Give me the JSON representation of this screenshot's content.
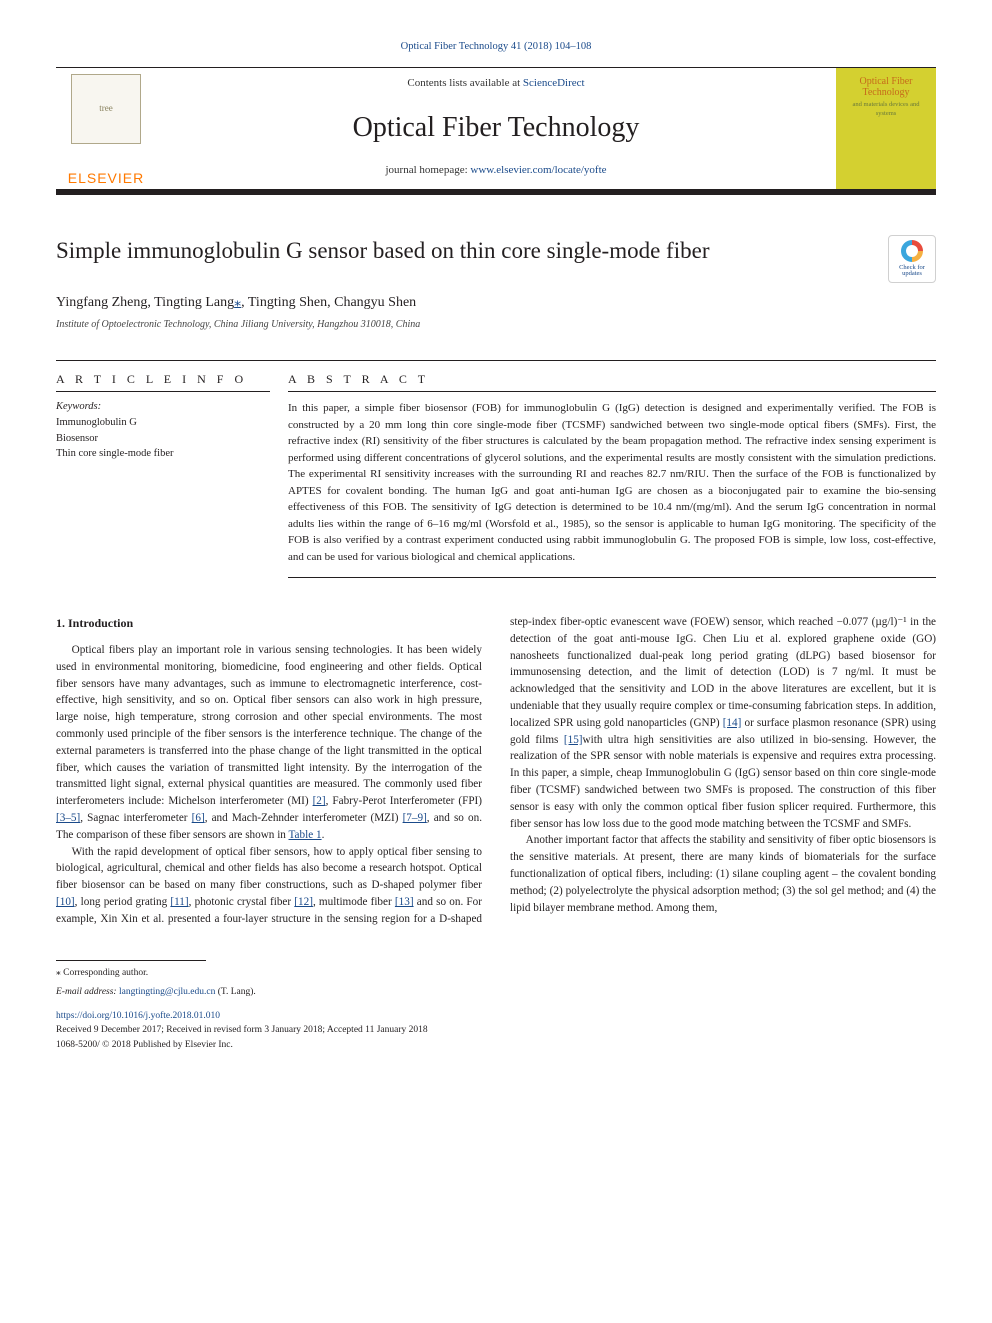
{
  "header": {
    "top_link": "Optical Fiber Technology 41 (2018) 104–108",
    "contents_prefix": "Contents lists available at ",
    "contents_link": "ScienceDirect",
    "journal_name": "Optical Fiber Technology",
    "homepage_prefix": "journal homepage: ",
    "homepage_url": "www.elsevier.com/locate/yofte",
    "publisher_name": "ELSEVIER",
    "tree_alt": "tree",
    "cover_title": "Optical Fiber Technology",
    "cover_sub": "and materials devices and systems"
  },
  "crossmark": {
    "line1": "Check for",
    "line2": "updates"
  },
  "article": {
    "title": "Simple immunoglobulin G sensor based on thin core single-mode fiber",
    "authors_html": "Yingfang Zheng, Tingting Lang",
    "corr_marker": "⁎",
    "authors_tail": ", Tingting Shen, Changyu Shen",
    "affiliation": "Institute of Optoelectronic Technology, China Jiliang University, Hangzhou 310018, China"
  },
  "info": {
    "heading": "A R T I C L E   I N F O",
    "kw_label": "Keywords:",
    "keywords": [
      "Immunoglobulin G",
      "Biosensor",
      "Thin core single-mode fiber"
    ]
  },
  "abstract": {
    "heading": "A B S T R A C T",
    "text": "In this paper, a simple fiber biosensor (FOB) for immunoglobulin G (IgG) detection is designed and experimentally verified. The FOB is constructed by a 20 mm long thin core single-mode fiber (TCSMF) sandwiched between two single-mode optical fibers (SMFs). First, the refractive index (RI) sensitivity of the fiber structures is calculated by the beam propagation method. The refractive index sensing experiment is performed using different concentrations of glycerol solutions, and the experimental results are mostly consistent with the simulation predictions. The experimental RI sensitivity increases with the surrounding RI and reaches 82.7 nm/RIU. Then the surface of the FOB is functionalized by APTES for covalent bonding. The human IgG and goat anti-human IgG are chosen as a bioconjugated pair to examine the bio-sensing effectiveness of this FOB. The sensitivity of IgG detection is determined to be 10.4 nm/(mg/ml). And the serum IgG concentration in normal adults lies within the range of 6–16 mg/ml (Worsfold et al., 1985), so the sensor is applicable to human IgG monitoring. The specificity of the FOB is also verified by a contrast experiment conducted using rabbit immunoglobulin G. The proposed FOB is simple, low loss, cost-effective, and can be used for various biological and chemical applications."
  },
  "body": {
    "section_number": "1.",
    "section_title": "Introduction",
    "p1a": "Optical fibers play an important role in various sensing technologies. It has been widely used in environmental monitoring, biomedicine, food engineering and other fields. Optical fiber sensors have many advantages, such as immune to electromagnetic interference, cost-effective, high sensitivity, and so on. Optical fiber sensors can also work in high pressure, large noise, high temperature, strong corrosion and other special environments. The most commonly used principle of the fiber sensors is the interference technique. The change of the external parameters is transferred into the phase change of the light transmitted in the optical fiber, which causes the variation of transmitted light intensity. By the interrogation of the transmitted light signal, external physical quantities are measured. The commonly used fiber interferometers include: Michelson interferometer (MI) ",
    "r2": "[2]",
    "p1b": ", Fabry-Perot Interferometer (FPI) ",
    "r35": "[3–5]",
    "p1c": ", Sagnac interferometer ",
    "r6": "[6]",
    "p1d": ", and Mach-Zehnder interferometer (MZI) ",
    "r79": "[7–9]",
    "p1e": ", and so on. The comparison of these fiber sensors are shown in ",
    "t1": "Table 1",
    "p1f": ".",
    "p2a": "With the rapid development of optical fiber sensors, how to apply optical fiber sensing to biological, agricultural, chemical and other fields has also become a research hotspot. Optical fiber biosensor can be based on many fiber constructions, such as D-shaped polymer fiber ",
    "r10": "[10]",
    "p2b": ", long period grating ",
    "r11": "[11]",
    "p2c": ", photonic crystal fiber ",
    "r12": "[12]",
    "p2d": ", multimode fiber ",
    "r13": "[13]",
    "p2e": " and so on. For example, Xin Xin et al. presented a four-layer structure in the sensing region for a D-shaped step-index fiber-optic evanescent wave (FOEW) sensor, which reached −0.077 (µg/l)⁻¹ in the detection of the goat anti-mouse IgG. Chen Liu et al. explored graphene oxide (GO) nanosheets functionalized dual-peak long period grating (dLPG) based biosensor for immunosensing detection, and the limit of detection (LOD) is 7 ng/ml. It must be acknowledged that the sensitivity and LOD in the above literatures are excellent, but it is undeniable that they usually require complex or time-consuming fabrication steps. In addition, localized SPR using gold nanoparticles (GNP) ",
    "r14": "[14]",
    "p2f": " or surface plasmon resonance (SPR) using gold films ",
    "r15": "[15]",
    "p2g": "with ultra high sensitivities are also utilized in bio-sensing. However, the realization of the SPR sensor with noble materials is expensive and requires extra processing. In this paper, a simple, cheap Immunoglobulin G (IgG) sensor based on thin core single-mode fiber (TCSMF) sandwiched between two SMFs is proposed. The construction of this fiber sensor is easy with only the common optical fiber fusion splicer required. Furthermore, this fiber sensor has low loss due to the good mode matching between the TCSMF and SMFs.",
    "p3": "Another important factor that affects the stability and sensitivity of fiber optic biosensors is the sensitive materials. At present, there are many kinds of biomaterials for the surface functionalization of optical fibers, including: (1) silane coupling agent – the covalent bonding method; (2) polyelectrolyte the physical adsorption method; (3) the sol gel method; and (4) the lipid bilayer membrane method. Among them,"
  },
  "footer": {
    "corr_note": "⁎ Corresponding author.",
    "email_label": "E-mail address: ",
    "email": "langtingting@cjlu.edu.cn",
    "email_tail": " (T. Lang).",
    "doi": "https://doi.org/10.1016/j.yofte.2018.01.010",
    "received": "Received 9 December 2017; Received in revised form 3 January 2018; Accepted 11 January 2018",
    "issn_line": "1068-5200/ © 2018 Published by Elsevier Inc."
  },
  "colors": {
    "link": "#1a4a8a",
    "elsevier_orange": "#ff7900",
    "cover_bg": "#d4d030",
    "cover_title": "#c66b1a",
    "rule": "#231f20"
  }
}
